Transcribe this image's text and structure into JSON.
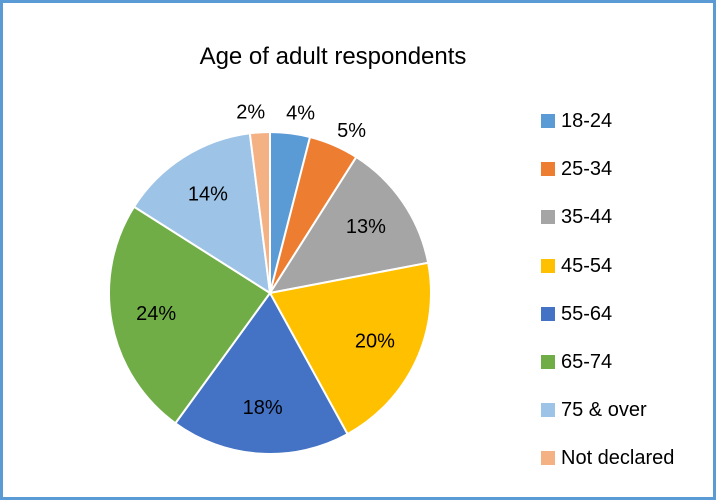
{
  "chart_data": {
    "type": "pie",
    "title": "Age of adult respondents",
    "categories": [
      "18-24",
      "25-34",
      "35-44",
      "45-54",
      "55-64",
      "65-74",
      "75 & over",
      "Not declared"
    ],
    "values": [
      4,
      5,
      13,
      20,
      18,
      24,
      14,
      2
    ],
    "labels": [
      "4%",
      "5%",
      "13%",
      "20%",
      "18%",
      "24%",
      "14%",
      "2%"
    ],
    "colors": [
      "#5b9bd5",
      "#ed7d31",
      "#a5a5a5",
      "#ffc000",
      "#4472c4",
      "#70ad47",
      "#9dc3e6",
      "#f4b183"
    ],
    "legend_position": "right"
  }
}
